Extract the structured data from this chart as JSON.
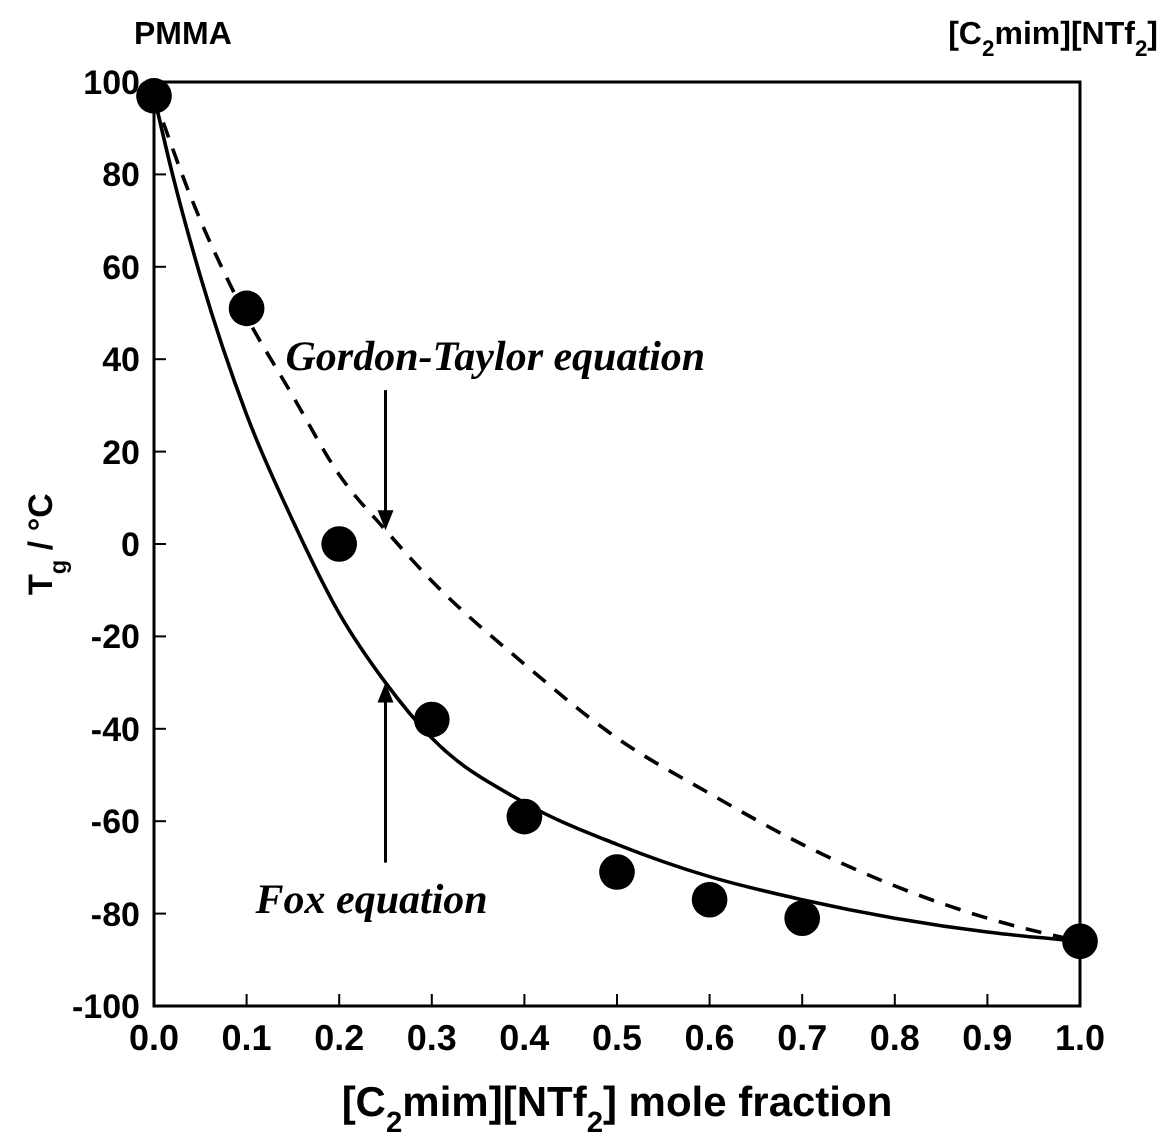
{
  "chart_data": {
    "type": "scatter",
    "xlabel": "[C$_{2}$mim][NTf$_{2}$] mole fraction",
    "ylabel": "T$_{g}$ / °C",
    "xlim": [
      0,
      1
    ],
    "ylim": [
      -100,
      100
    ],
    "xticks": [
      {
        "value": 0,
        "label": "0.0"
      },
      {
        "value": 0.1,
        "label": "0.1"
      },
      {
        "value": 0.2,
        "label": "0.2"
      },
      {
        "value": 0.3,
        "label": "0.3"
      },
      {
        "value": 0.4,
        "label": "0.4"
      },
      {
        "value": 0.5,
        "label": "0.5"
      },
      {
        "value": 0.6,
        "label": "0.6"
      },
      {
        "value": 0.7,
        "label": "0.7"
      },
      {
        "value": 0.8,
        "label": "0.8"
      },
      {
        "value": 0.9,
        "label": "0.9"
      },
      {
        "value": 1,
        "label": "1.0"
      }
    ],
    "yticks": [
      -100,
      -80,
      -60,
      -40,
      -20,
      0,
      20,
      40,
      60,
      80,
      100
    ],
    "grid": false,
    "marker": "circle",
    "series": [
      {
        "type": "line",
        "line_style": "solid",
        "marker": "none",
        "color": "#000000",
        "x": [
          0,
          0.02,
          0.05,
          0.1,
          0.15,
          0.2,
          0.25,
          0.3,
          0.4,
          0.5,
          0.6,
          0.7,
          0.8,
          0.9,
          1
        ],
        "values": [
          97,
          80,
          58,
          28,
          5,
          -15,
          -30,
          -42,
          -56,
          -65,
          -72,
          -77,
          -81,
          -84,
          -86
        ]
      },
      {
        "type": "line",
        "line_style": "dashed",
        "marker": "none",
        "color": "#000000",
        "x": [
          0,
          0.04,
          0.09,
          0.15,
          0.2,
          0.25,
          0.3,
          0.4,
          0.5,
          0.6,
          0.7,
          0.8,
          0.9,
          1
        ],
        "values": [
          97,
          75,
          53,
          32,
          15,
          3,
          -8,
          -26,
          -42,
          -54,
          -65,
          -74,
          -81,
          -86
        ]
      },
      {
        "color": "#000000",
        "x": [
          0,
          0.1,
          0.2,
          0.3,
          0.4,
          0.5,
          0.6,
          0.7,
          1
        ],
        "values": [
          97,
          51,
          0,
          -38,
          -59,
          -71,
          -77,
          -81,
          -86
        ]
      }
    ],
    "annotations": [
      {
        "text": "Gordon-Taylor equation",
        "x": 0.25,
        "y": 3
      },
      {
        "text": "Fox equation",
        "x": 0.25,
        "y": -30
      },
      "PMMA",
      "[C$_{2}$mim][NTf$_{2}$]"
    ]
  }
}
